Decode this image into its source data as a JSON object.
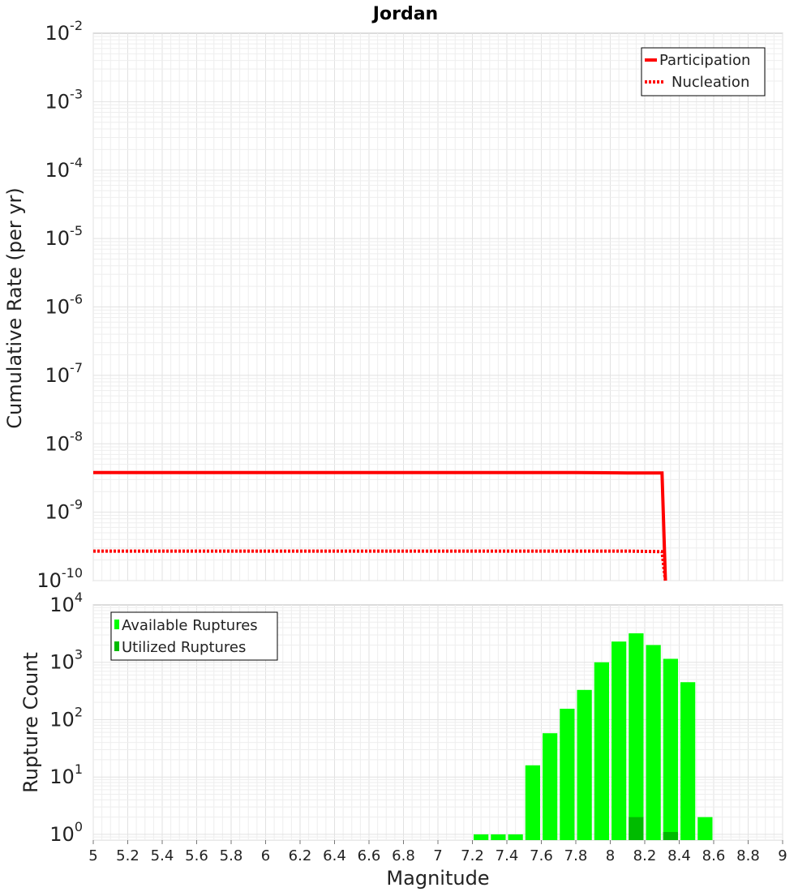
{
  "chart_data": [
    {
      "type": "line",
      "title": "Jordan",
      "xlabel": "",
      "ylabel": "Cumulative Rate (per yr)",
      "yscale": "log",
      "xlim": [
        5,
        9
      ],
      "ylim_exp": [
        -10,
        -2
      ],
      "y_ticks": [
        {
          "base": "10",
          "exp": "-2"
        },
        {
          "base": "10",
          "exp": "-3"
        },
        {
          "base": "10",
          "exp": "-4"
        },
        {
          "base": "10",
          "exp": "-5"
        },
        {
          "base": "10",
          "exp": "-6"
        },
        {
          "base": "10",
          "exp": "-7"
        },
        {
          "base": "10",
          "exp": "-8"
        },
        {
          "base": "10",
          "exp": "-9"
        },
        {
          "base": "10",
          "exp": "-10"
        }
      ],
      "legend_position": "top-right",
      "series": [
        {
          "name": "Participation",
          "color": "#ff0000",
          "style": "solid",
          "x": [
            5.0,
            7.8,
            8.1,
            8.3,
            8.32
          ],
          "y": [
            3.8e-09,
            3.8e-09,
            3.75e-09,
            3.75e-09,
            1e-10
          ]
        },
        {
          "name": "Nucleation",
          "color": "#ff0000",
          "style": "dotted",
          "x": [
            5.0,
            8.1,
            8.3,
            8.32
          ],
          "y": [
            2.7e-10,
            2.7e-10,
            2.65e-10,
            1e-10
          ]
        }
      ]
    },
    {
      "type": "bar",
      "title": "",
      "xlabel": "Magnitude",
      "ylabel": "Rupture Count",
      "yscale": "log",
      "xlim": [
        5,
        9
      ],
      "ylim_exp": [
        -0.1,
        4
      ],
      "y_ticks": [
        {
          "base": "10",
          "exp": "0"
        },
        {
          "base": "10",
          "exp": "1"
        },
        {
          "base": "10",
          "exp": "2"
        },
        {
          "base": "10",
          "exp": "3"
        },
        {
          "base": "10",
          "exp": "4"
        }
      ],
      "x_ticks": [
        "5",
        "5.2",
        "5.4",
        "5.6",
        "5.8",
        "6",
        "6.2",
        "6.4",
        "6.6",
        "6.8",
        "7",
        "7.2",
        "7.4",
        "7.6",
        "7.8",
        "8",
        "8.2",
        "8.4",
        "8.6",
        "8.8",
        "9"
      ],
      "legend_position": "top-left",
      "bin_width": 0.1,
      "series": [
        {
          "name": "Available Ruptures",
          "color": "#00ff00",
          "x": [
            7.25,
            7.35,
            7.45,
            7.55,
            7.65,
            7.75,
            7.85,
            7.95,
            8.05,
            8.15,
            8.25,
            8.35,
            8.45,
            8.55
          ],
          "values": [
            1,
            1,
            1,
            16,
            58,
            155,
            330,
            1000,
            2300,
            3200,
            2000,
            1150,
            450,
            2
          ]
        },
        {
          "name": "Utilized Ruptures",
          "color": "#00bb00",
          "x": [
            8.15,
            8.35
          ],
          "values": [
            2,
            1.1
          ]
        }
      ]
    }
  ]
}
